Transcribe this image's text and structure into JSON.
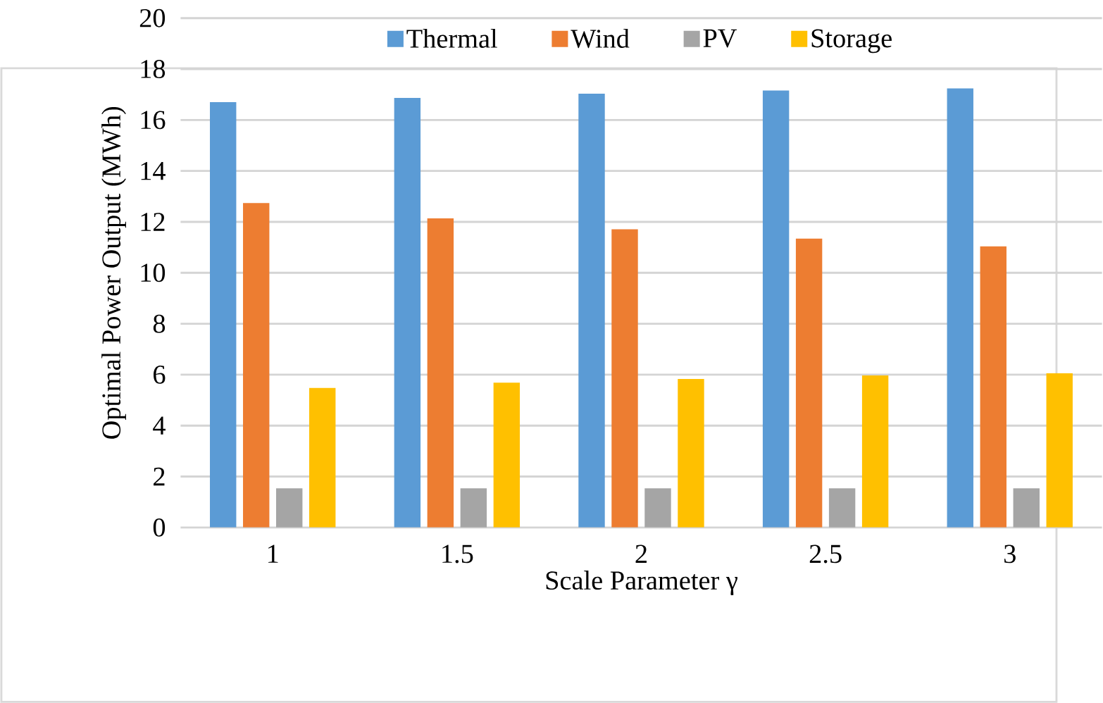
{
  "chart_data": {
    "type": "bar",
    "xlabel": "Scale Parameter γ",
    "ylabel": "Optimal Power Output (MWh)",
    "categories": [
      "1",
      "1.5",
      "2",
      "2.5",
      "3"
    ],
    "series": [
      {
        "name": "Thermal",
        "color": "#5b9bd5",
        "values": [
          16.7,
          16.87,
          17.03,
          17.16,
          17.24
        ]
      },
      {
        "name": "Wind",
        "color": "#ed7d31",
        "values": [
          12.74,
          12.14,
          11.71,
          11.34,
          11.04
        ]
      },
      {
        "name": "PV",
        "color": "#a5a5a5",
        "values": [
          1.54,
          1.54,
          1.54,
          1.54,
          1.54
        ]
      },
      {
        "name": "Storage",
        "color": "#ffc000",
        "values": [
          5.48,
          5.69,
          5.83,
          5.97,
          6.06
        ]
      }
    ],
    "ylim": [
      0,
      20
    ],
    "yticks": [
      0,
      2,
      4,
      6,
      8,
      10,
      12,
      14,
      16,
      18,
      20
    ],
    "grid": "y",
    "legend": "top"
  }
}
